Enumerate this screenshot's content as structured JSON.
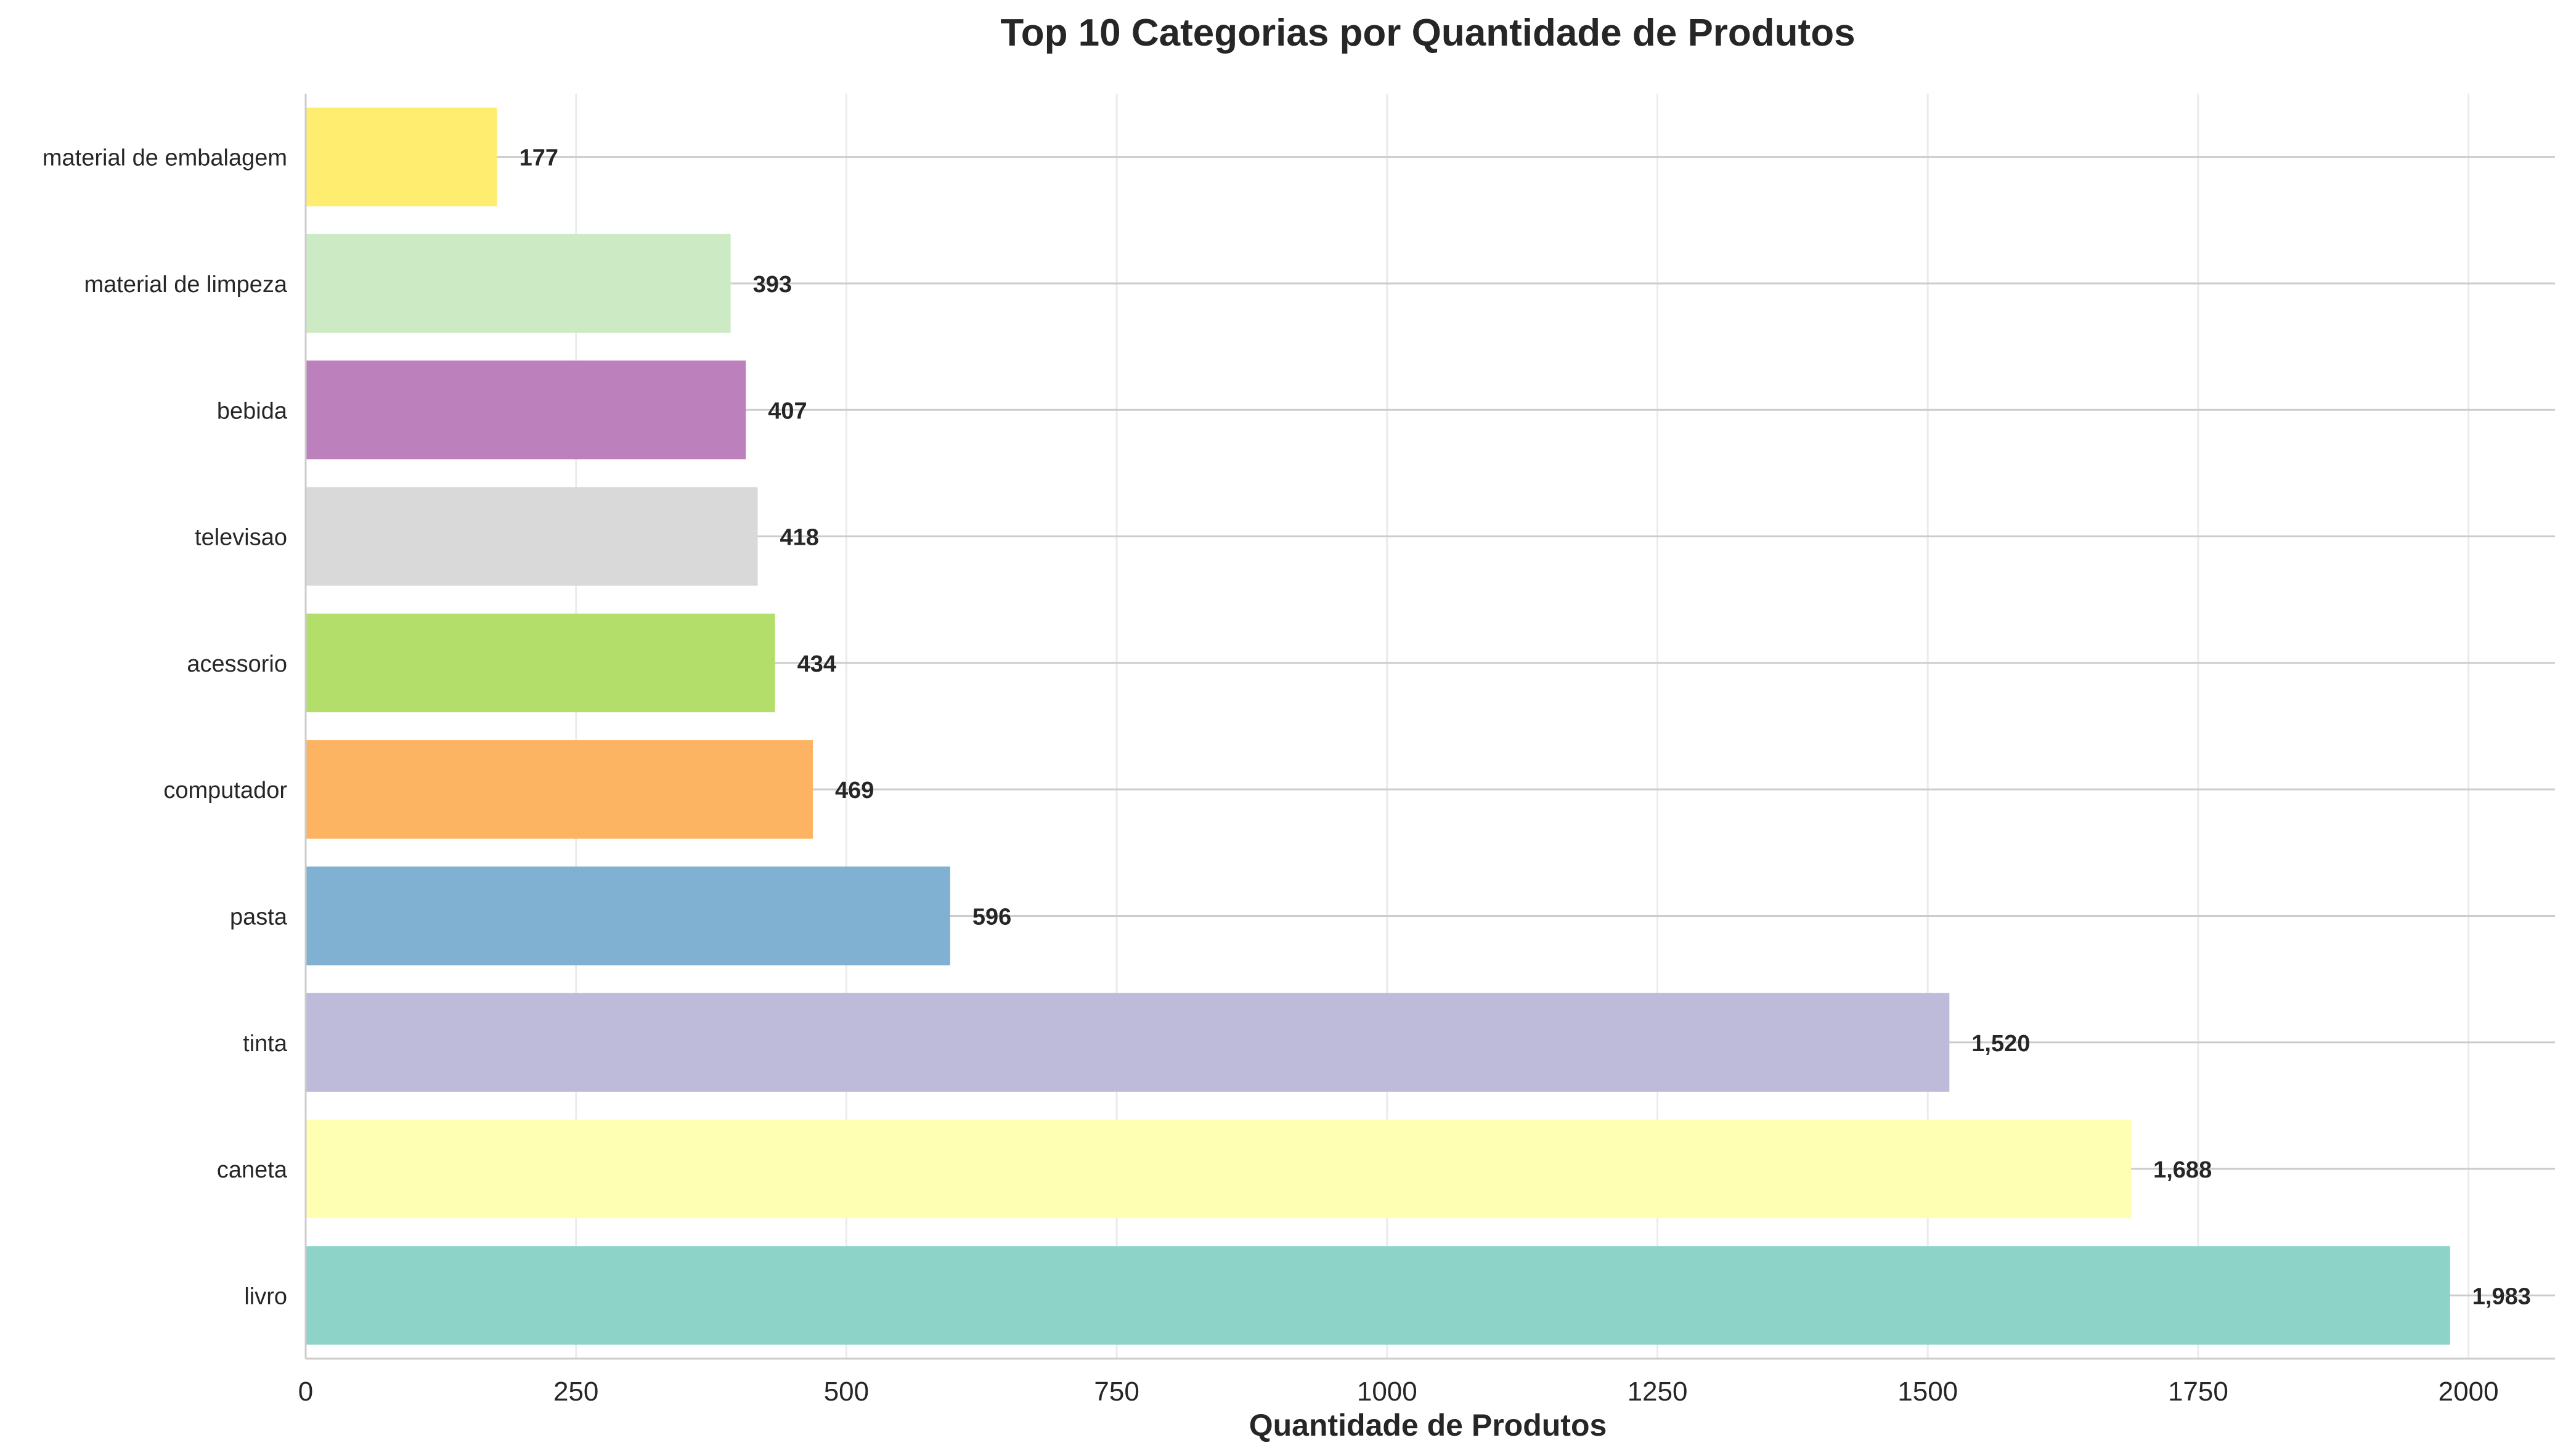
{
  "chart_data": {
    "type": "bar",
    "orientation": "horizontal",
    "title": "Top 10 Categorias por Quantidade de Produtos",
    "xlabel": "Quantidade de Produtos",
    "ylabel": "",
    "xlim": [
      0,
      2080
    ],
    "xticks": [
      0,
      250,
      500,
      750,
      1000,
      1250,
      1500,
      1750,
      2000
    ],
    "grid": true,
    "categories": [
      "livro",
      "caneta",
      "tinta",
      "pasta",
      "computador",
      "acessorio",
      "televisao",
      "bebida",
      "material de limpeza",
      "material de embalagem"
    ],
    "values": [
      1983,
      1688,
      1520,
      596,
      469,
      434,
      418,
      407,
      393,
      177
    ],
    "value_labels": [
      "1,983",
      "1,688",
      "1,520",
      "596",
      "469",
      "434",
      "418",
      "407",
      "393",
      "177"
    ],
    "colors": [
      "#8dd3c7",
      "#ffffb3",
      "#bebada",
      "#80b1d3",
      "#fdb462",
      "#b3de69",
      "#d9d9d9",
      "#bc80bd",
      "#ccebc5",
      "#ffed6f"
    ]
  }
}
